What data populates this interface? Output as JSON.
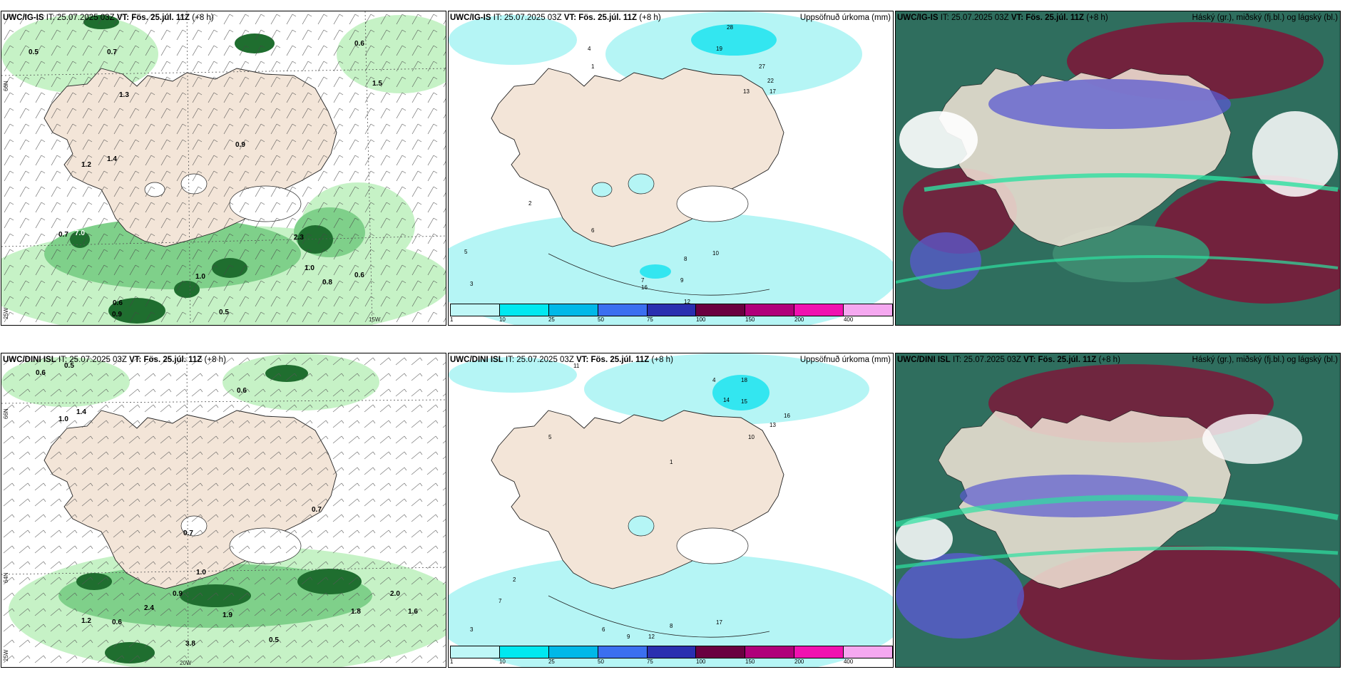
{
  "panels": [
    {
      "model": "UWC/IG-IS",
      "issue": "IT: 25.07.2025 03Z",
      "valid": "VT: Fös. 25.júl. 11Z",
      "lead": "(+8 h)"
    },
    {
      "model": "UWC/IG-IS",
      "issue": "IT: 25.07.2025 03Z",
      "valid": "VT: Fös. 25.júl. 11Z",
      "lead": "(+8 h)",
      "right_title": "Uppsöfnuð úrkoma (mm)"
    },
    {
      "model": "UWC/IG-IS",
      "issue": "IT: 25.07.2025 03Z",
      "valid": "VT: Fös. 25.júl. 11Z",
      "lead": "(+8 h)",
      "right_title": "Háský (gr.), miðský (fj.bl.) og lágský (bl.)"
    },
    {
      "model": "UWC/DINI ISL",
      "issue": "IT: 25.07.2025 03Z",
      "valid": "VT: Fös. 25.júl. 11Z",
      "lead": "(+8 h)"
    },
    {
      "model": "UWC/DINI ISL",
      "issue": "IT: 25.07.2025 03Z",
      "valid": "VT: Fös. 25.júl. 11Z",
      "lead": "(+8 h)",
      "right_title": "Uppsöfnuð úrkoma (mm)"
    },
    {
      "model": "UWC/DINI ISL",
      "issue": "IT: 25.07.2025 03Z",
      "valid": "VT: Fös. 25.júl. 11Z",
      "lead": "(+8 h)",
      "right_title": "Háský (gr.), miðský (fj.bl.) og lágský (bl.)"
    }
  ],
  "axis_labels": {
    "lat66": "66N",
    "lat64": "64N",
    "lon25": "25W",
    "lon15": "15W",
    "lon20": "20W"
  },
  "colorbar": {
    "ticks": [
      "1",
      "10",
      "25",
      "50",
      "75",
      "100",
      "150",
      "200",
      "400"
    ],
    "colors": [
      "#bff7f7",
      "#00e8f0",
      "#00b8e8",
      "#3b6ff0",
      "#2a2fb0",
      "#6a0040",
      "#b0007a",
      "#f012b0",
      "#f5a8f0"
    ]
  },
  "colors": {
    "land": "#f3e5d8",
    "precip_light": "#c6f2c6",
    "precip_mid": "#7fd08a",
    "precip_dark": "#1f6e2f",
    "accum_cyan": "#b5f5f5",
    "cloud_high": "#2f6e5e",
    "cloud_mid": "#7a1a3a",
    "cloud_low": "#5a5ad0"
  },
  "wind_panel_values_top": [
    "0.5",
    "0.7",
    "1.3",
    "0.9",
    "1.2",
    "1.4",
    "7.0",
    "0.7",
    "0.6",
    "1.0",
    "0.8",
    "0.5",
    "0.6",
    "0.9",
    "2.3",
    "1.0",
    "1.5",
    "0.6"
  ],
  "wind_panel_values_bottom": [
    "0.6",
    "0.5",
    "1.4",
    "1.0",
    "0.7",
    "0.7",
    "0.6",
    "0.9",
    "1.0",
    "2.4",
    "3.8",
    "1.9",
    "0.5",
    "0.6",
    "1.8",
    "2.0",
    "1.6",
    "1.2"
  ],
  "accum_values_top": [
    "1",
    "2",
    "3",
    "5",
    "7",
    "8",
    "10",
    "12",
    "16",
    "19",
    "22",
    "27",
    "28",
    "4",
    "6",
    "9",
    "13",
    "17"
  ],
  "accum_values_bottom": [
    "1",
    "2",
    "3",
    "4",
    "5",
    "6",
    "7",
    "8",
    "9",
    "10",
    "11",
    "12",
    "13",
    "14",
    "15",
    "16",
    "17",
    "18"
  ]
}
